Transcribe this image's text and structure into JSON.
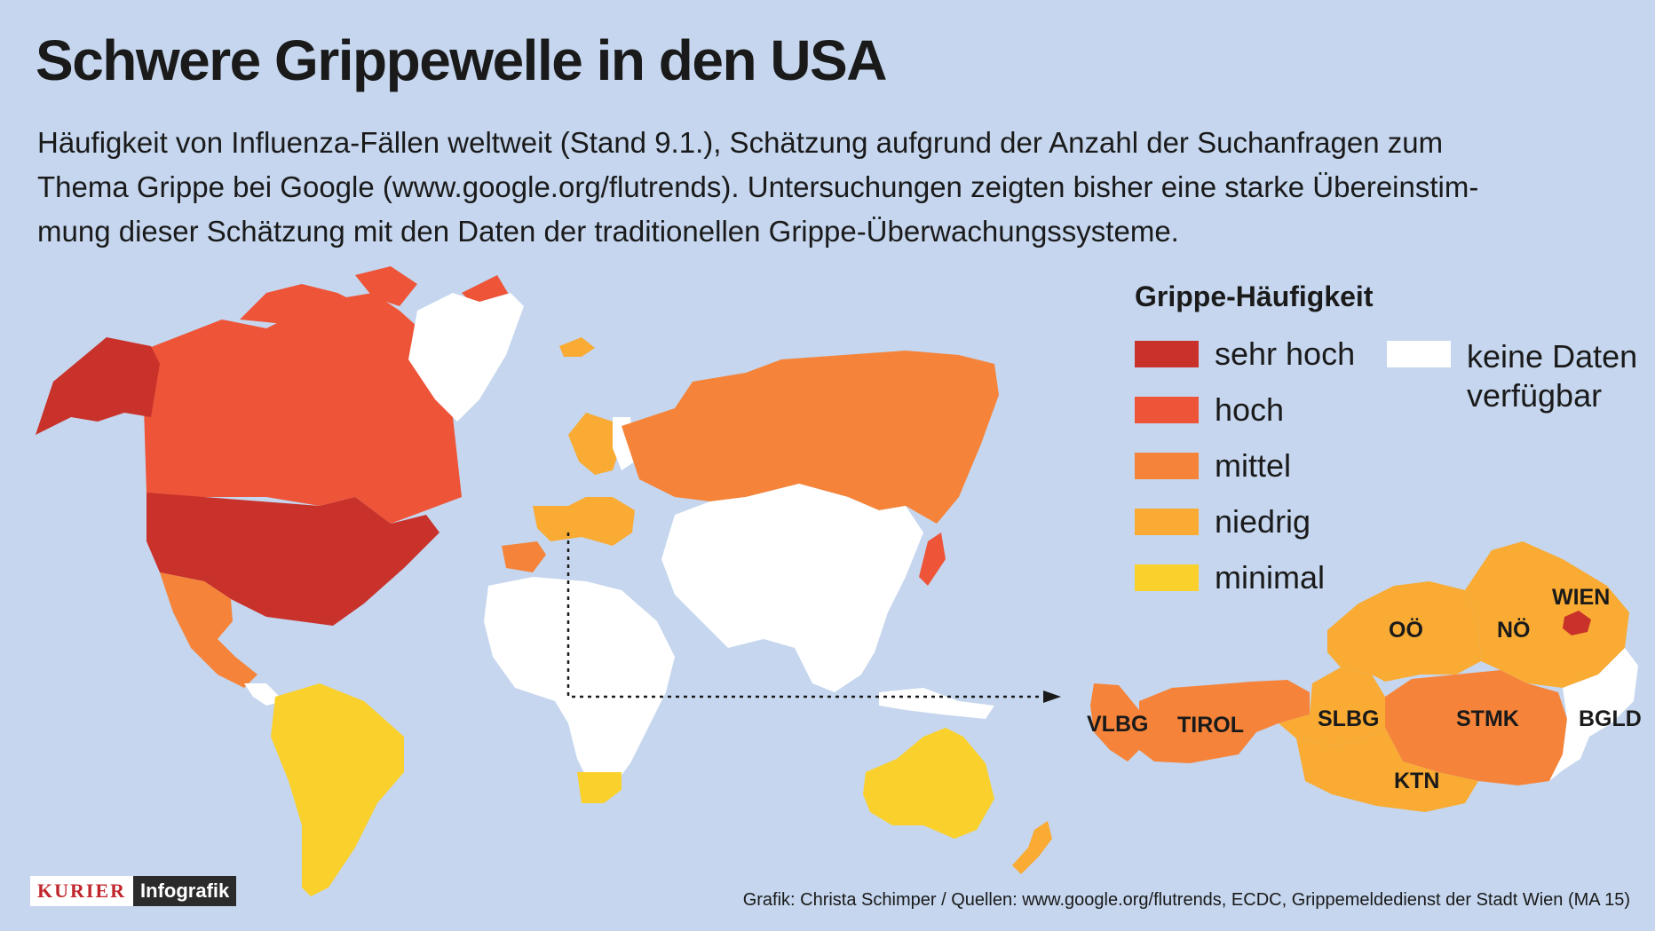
{
  "title": "Schwere Grippewelle in den USA",
  "subtitle": {
    "line1": "Häufigkeit von Influenza-Fällen weltweit (Stand 9.1.), Schätzung aufgrund der Anzahl der Suchanfragen zum",
    "line2": "Thema Grippe bei Google (www.google.org/flutrends). Untersuchungen zeigten bisher eine starke Übereinstim-",
    "line3": "mung dieser Schätzung mit den Daten der traditionellen Grippe-Überwachungssysteme."
  },
  "legend": {
    "title": "Grippe-Häufigkeit",
    "items": [
      {
        "label": "sehr hoch",
        "color": "#c8322b"
      },
      {
        "label": "hoch",
        "color": "#ee5438"
      },
      {
        "label": "mittel",
        "color": "#f5843a"
      },
      {
        "label": "niedrig",
        "color": "#f9ab33"
      },
      {
        "label": "minimal",
        "color": "#fad12c"
      }
    ],
    "no_data": {
      "line1": "keine Daten",
      "line2": "verfügbar",
      "color": "#ffffff"
    }
  },
  "map_data": {
    "world": [
      {
        "region": "Alaska",
        "level": "sehr hoch"
      },
      {
        "region": "USA",
        "level": "sehr hoch"
      },
      {
        "region": "Kanada",
        "level": "hoch"
      },
      {
        "region": "Mexiko",
        "level": "mittel"
      },
      {
        "region": "Russland",
        "level": "mittel"
      },
      {
        "region": "Japan",
        "level": "hoch"
      },
      {
        "region": "Spanien",
        "level": "mittel"
      },
      {
        "region": "Skandinavien",
        "level": "niedrig"
      },
      {
        "region": "Mitteleuropa",
        "level": "niedrig"
      },
      {
        "region": "Südamerika",
        "level": "minimal"
      },
      {
        "region": "Südafrika",
        "level": "minimal"
      },
      {
        "region": "Australien",
        "level": "minimal"
      },
      {
        "region": "Neuseeland",
        "level": "niedrig"
      },
      {
        "region": "Grönland",
        "level": "keine Daten verfügbar"
      },
      {
        "region": "Afrika",
        "level": "keine Daten verfügbar"
      },
      {
        "region": "Asien",
        "level": "keine Daten verfügbar"
      }
    ],
    "austria": [
      {
        "label": "VLBG",
        "level": "mittel"
      },
      {
        "label": "TIROL",
        "level": "mittel"
      },
      {
        "label": "SLBG",
        "level": "niedrig"
      },
      {
        "label": "OÖ",
        "level": "niedrig"
      },
      {
        "label": "NÖ",
        "level": "niedrig"
      },
      {
        "label": "WIEN",
        "level": "sehr hoch"
      },
      {
        "label": "STMK",
        "level": "mittel"
      },
      {
        "label": "KTN",
        "level": "niedrig"
      },
      {
        "label": "BGLD",
        "level": "keine Daten verfügbar"
      }
    ]
  },
  "logo": {
    "brand": "KURIER",
    "sub": "Infografik"
  },
  "credits": "Grafik: Christa Schimper / Quellen: www.google.org/flutrends, ECDC, Grippemeldedienst der Stadt Wien (MA 15)"
}
